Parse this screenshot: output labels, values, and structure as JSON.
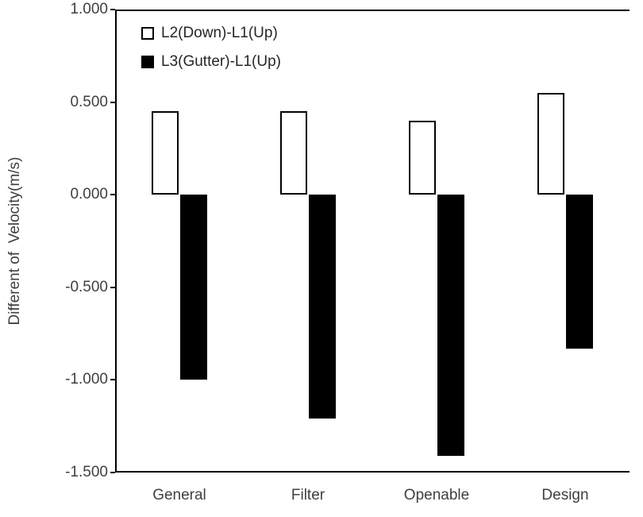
{
  "chart_data": {
    "type": "bar",
    "categories": [
      "General",
      "Filter",
      "Openable",
      "Design"
    ],
    "series": [
      {
        "name": "L2(Down)-L1(Up)",
        "style": "open",
        "fill": "#ffffff",
        "border": "#000000",
        "values": [
          0.45,
          0.45,
          0.4,
          0.55
        ]
      },
      {
        "name": "L3(Gutter)-L1(Up)",
        "style": "solid",
        "fill": "#000000",
        "border": "#000000",
        "values": [
          -1.0,
          -1.21,
          -1.41,
          -0.83
        ]
      }
    ],
    "title": "",
    "xlabel": "",
    "ylabel": "Different of  Velocity(m/s)",
    "ylim": [
      -1.5,
      1.0
    ],
    "yticks": [
      1.0,
      0.5,
      0.0,
      -0.5,
      -1.0,
      -1.5
    ],
    "ytick_labels": [
      "1.000",
      "0.500",
      "0.000",
      "-0.500",
      "-1.000",
      "-1.500"
    ],
    "legend_position": "top-left-inside",
    "grid": false
  },
  "colors": {
    "axis": "#000000",
    "text": "#404040",
    "bar_positive_fill": "#ffffff",
    "bar_negative_fill": "#000000"
  }
}
